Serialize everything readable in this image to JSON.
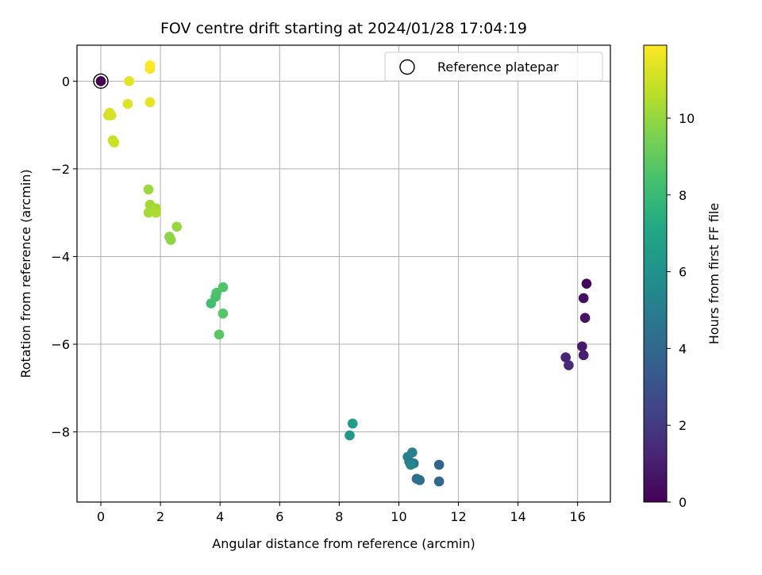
{
  "chart_data": {
    "type": "scatter",
    "title": "FOV centre drift starting at 2024/01/28 17:04:19",
    "xlabel": "Angular distance from reference (arcmin)",
    "ylabel": "Rotation from reference (arcmin)",
    "xlim": [
      -0.8,
      17.1
    ],
    "ylim": [
      -9.6,
      0.82
    ],
    "xticks": [
      0,
      2,
      4,
      6,
      8,
      10,
      12,
      14,
      16
    ],
    "yticks": [
      0,
      -2,
      -4,
      -6,
      -8
    ],
    "grid": true,
    "legend": {
      "placement": "top-right",
      "entries": [
        "Reference platepar"
      ]
    },
    "colorbar": {
      "label": "Hours from first FF file",
      "range": [
        0,
        11.9
      ],
      "ticks": [
        0,
        2,
        4,
        6,
        8,
        10
      ],
      "colormap": "viridis"
    },
    "reference": {
      "name": "Reference platepar",
      "x": 0,
      "y": 0,
      "color": "#000000"
    },
    "points": [
      {
        "x": 0.0,
        "y": 0.0,
        "h": 0.0
      },
      {
        "x": 16.3,
        "y": -4.62,
        "h": 0.2
      },
      {
        "x": 16.2,
        "y": -4.95,
        "h": 0.4
      },
      {
        "x": 16.25,
        "y": -5.4,
        "h": 0.6
      },
      {
        "x": 16.15,
        "y": -6.05,
        "h": 0.8
      },
      {
        "x": 16.2,
        "y": -6.25,
        "h": 1.0
      },
      {
        "x": 15.6,
        "y": -6.3,
        "h": 1.2
      },
      {
        "x": 15.7,
        "y": -6.48,
        "h": 1.4
      },
      {
        "x": 11.35,
        "y": -8.75,
        "h": 3.8
      },
      {
        "x": 11.35,
        "y": -9.13,
        "h": 4.0
      },
      {
        "x": 10.6,
        "y": -9.07,
        "h": 4.2
      },
      {
        "x": 10.7,
        "y": -9.1,
        "h": 4.4
      },
      {
        "x": 10.5,
        "y": -8.72,
        "h": 4.6
      },
      {
        "x": 10.35,
        "y": -8.68,
        "h": 4.8
      },
      {
        "x": 10.3,
        "y": -8.57,
        "h": 5.0
      },
      {
        "x": 10.45,
        "y": -8.47,
        "h": 5.2
      },
      {
        "x": 10.4,
        "y": -8.75,
        "h": 5.4
      },
      {
        "x": 8.35,
        "y": -8.08,
        "h": 6.2
      },
      {
        "x": 8.45,
        "y": -7.81,
        "h": 6.5
      },
      {
        "x": 3.7,
        "y": -5.07,
        "h": 8.3
      },
      {
        "x": 3.85,
        "y": -4.92,
        "h": 8.4
      },
      {
        "x": 3.88,
        "y": -4.83,
        "h": 8.5
      },
      {
        "x": 4.1,
        "y": -4.7,
        "h": 8.6
      },
      {
        "x": 4.1,
        "y": -5.3,
        "h": 8.7
      },
      {
        "x": 3.97,
        "y": -5.78,
        "h": 8.8
      },
      {
        "x": 2.3,
        "y": -3.55,
        "h": 9.8
      },
      {
        "x": 2.35,
        "y": -3.62,
        "h": 9.9
      },
      {
        "x": 2.55,
        "y": -3.32,
        "h": 10.0
      },
      {
        "x": 1.6,
        "y": -2.47,
        "h": 10.1
      },
      {
        "x": 1.65,
        "y": -2.82,
        "h": 10.2
      },
      {
        "x": 1.85,
        "y": -2.9,
        "h": 10.3
      },
      {
        "x": 1.6,
        "y": -3.0,
        "h": 10.3
      },
      {
        "x": 1.85,
        "y": -3.0,
        "h": 10.4
      },
      {
        "x": 0.4,
        "y": -1.35,
        "h": 10.9
      },
      {
        "x": 0.45,
        "y": -1.4,
        "h": 10.95
      },
      {
        "x": 0.25,
        "y": -0.78,
        "h": 11.0
      },
      {
        "x": 0.35,
        "y": -0.78,
        "h": 11.1
      },
      {
        "x": 0.3,
        "y": -0.72,
        "h": 11.2
      },
      {
        "x": 0.9,
        "y": -0.52,
        "h": 11.3
      },
      {
        "x": 0.95,
        "y": 0.0,
        "h": 11.4
      },
      {
        "x": 1.65,
        "y": -0.48,
        "h": 11.5
      },
      {
        "x": 1.65,
        "y": 0.28,
        "h": 11.7
      },
      {
        "x": 1.65,
        "y": 0.36,
        "h": 11.9
      }
    ]
  }
}
